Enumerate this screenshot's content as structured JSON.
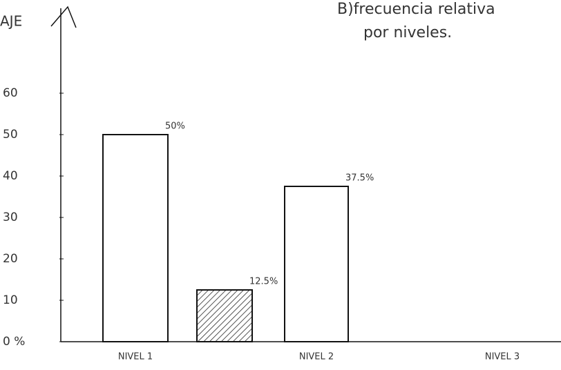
{
  "chart_data": {
    "type": "bar",
    "title": "B)frecuencia relativa",
    "subtitle": "por niveles.",
    "y_label": "AJE",
    "categories": [
      "NIVEL 1",
      null,
      "NIVEL 2",
      "NIVEL 3"
    ],
    "values": [
      50,
      12.5,
      37.5,
      0
    ],
    "value_labels": [
      "50%",
      "12.5%",
      "37.5%",
      null
    ],
    "color": "#ffffff",
    "ylim": [
      0,
      80
    ],
    "yticks": [
      {
        "value": 0,
        "label": "0 %"
      },
      10,
      20,
      30,
      40,
      50,
      60
    ]
  }
}
